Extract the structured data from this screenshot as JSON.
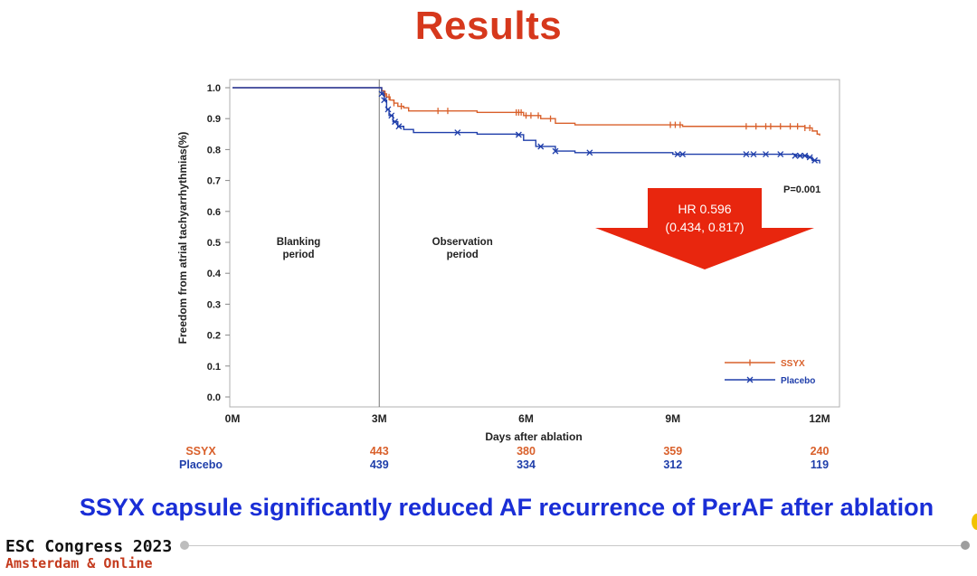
{
  "slide": {
    "title": "Results",
    "title_color": "#d6381c",
    "headline": "SSYX capsule significantly reduced AF recurrence of PerAF after ablation",
    "headline_color": "#1a2ed6"
  },
  "footer": {
    "line1": "ESC Congress 2023",
    "line2": "Amsterdam & Online",
    "line2_color": "#c43a1d"
  },
  "chart_data": {
    "type": "line",
    "xlabel": "Days after ablation",
    "ylabel": "Freedom from atrial tachyarrhythmias(%)",
    "xlim": [
      0,
      12
    ],
    "ylim": [
      0,
      1
    ],
    "x_ticks": [
      {
        "value": 0,
        "label": "0M"
      },
      {
        "value": 3,
        "label": "3M"
      },
      {
        "value": 6,
        "label": "6M"
      },
      {
        "value": 9,
        "label": "9M"
      },
      {
        "value": 12,
        "label": "12M"
      }
    ],
    "y_ticks": [
      "0.0",
      "0.1",
      "0.2",
      "0.3",
      "0.4",
      "0.5",
      "0.6",
      "0.7",
      "0.8",
      "0.9",
      "1.0"
    ],
    "blanking_divider_x": 3,
    "period_labels": [
      {
        "text": "Blanking\nperiod"
      },
      {
        "text": "Observation\nperiod"
      }
    ],
    "pvalue": "P=0.001",
    "hr_text": "HR 0.596",
    "hr_ci": "(0.434, 0.817)",
    "hr_color": "#e8260e",
    "legend_position": "bottom-right",
    "series": [
      {
        "name": "SSYX",
        "color": "#d9602b",
        "marker": "tick",
        "points": [
          [
            0,
            1.0
          ],
          [
            3.0,
            1.0
          ],
          [
            3.05,
            0.99
          ],
          [
            3.1,
            0.98
          ],
          [
            3.15,
            0.97
          ],
          [
            3.22,
            0.96
          ],
          [
            3.3,
            0.95
          ],
          [
            3.38,
            0.94
          ],
          [
            3.5,
            0.935
          ],
          [
            3.6,
            0.925
          ],
          [
            4.5,
            0.925
          ],
          [
            5.0,
            0.92
          ],
          [
            5.8,
            0.92
          ],
          [
            5.95,
            0.91
          ],
          [
            6.3,
            0.9
          ],
          [
            6.6,
            0.885
          ],
          [
            7.0,
            0.88
          ],
          [
            8.9,
            0.88
          ],
          [
            9.2,
            0.875
          ],
          [
            11.5,
            0.875
          ],
          [
            11.7,
            0.87
          ],
          [
            11.85,
            0.86
          ],
          [
            11.95,
            0.85
          ],
          [
            12.0,
            0.845
          ]
        ],
        "censor_x": [
          3.05,
          3.12,
          3.2,
          3.3,
          3.45,
          4.2,
          4.4,
          5.8,
          5.85,
          5.9,
          6.0,
          6.1,
          6.25,
          6.5,
          8.95,
          9.05,
          9.15,
          10.5,
          10.7,
          10.9,
          11.0,
          11.2,
          11.4,
          11.55,
          11.7,
          11.8
        ]
      },
      {
        "name": "Placebo",
        "color": "#1f3eaa",
        "marker": "x",
        "points": [
          [
            0,
            1.0
          ],
          [
            3.0,
            1.0
          ],
          [
            3.05,
            0.98
          ],
          [
            3.1,
            0.96
          ],
          [
            3.15,
            0.93
          ],
          [
            3.2,
            0.91
          ],
          [
            3.28,
            0.89
          ],
          [
            3.38,
            0.875
          ],
          [
            3.5,
            0.865
          ],
          [
            3.7,
            0.855
          ],
          [
            4.5,
            0.855
          ],
          [
            5.0,
            0.85
          ],
          [
            5.8,
            0.848
          ],
          [
            5.95,
            0.83
          ],
          [
            6.2,
            0.81
          ],
          [
            6.6,
            0.795
          ],
          [
            7.0,
            0.79
          ],
          [
            8.5,
            0.79
          ],
          [
            9.0,
            0.785
          ],
          [
            11.2,
            0.785
          ],
          [
            11.5,
            0.78
          ],
          [
            11.75,
            0.775
          ],
          [
            11.85,
            0.765
          ],
          [
            12.0,
            0.755
          ]
        ],
        "censor_x": [
          3.05,
          3.1,
          3.18,
          3.25,
          3.32,
          3.4,
          4.6,
          5.85,
          6.3,
          6.6,
          7.3,
          9.1,
          9.2,
          10.5,
          10.65,
          10.9,
          11.2,
          11.5,
          11.6,
          11.7,
          11.8,
          11.9
        ]
      }
    ],
    "risk_table": {
      "rows": [
        {
          "name": "SSYX",
          "color": "#d9602b",
          "values": [
            443,
            380,
            359,
            240
          ]
        },
        {
          "name": "Placebo",
          "color": "#1f3eaa",
          "values": [
            439,
            334,
            312,
            119
          ]
        }
      ],
      "at_x": [
        3,
        6,
        9,
        12
      ]
    }
  }
}
